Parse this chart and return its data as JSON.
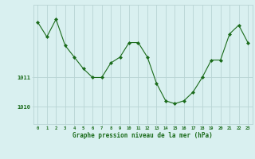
{
  "x": [
    0,
    1,
    2,
    3,
    4,
    5,
    6,
    7,
    8,
    9,
    10,
    11,
    12,
    13,
    14,
    15,
    16,
    17,
    18,
    19,
    20,
    21,
    22,
    23
  ],
  "y": [
    1012.9,
    1012.4,
    1013.0,
    1012.1,
    1011.7,
    1011.3,
    1011.0,
    1011.0,
    1011.5,
    1011.7,
    1012.2,
    1012.2,
    1011.7,
    1010.8,
    1010.2,
    1010.1,
    1010.2,
    1010.5,
    1011.0,
    1011.6,
    1011.6,
    1012.5,
    1012.8,
    1012.2
  ],
  "line_color": "#1a6b1a",
  "marker_color": "#1a6b1a",
  "bg_color": "#d9f0f0",
  "grid_color": "#b8d4d4",
  "axis_label_color": "#1a6b1a",
  "tick_label_color": "#1a6b1a",
  "xlabel": "Graphe pression niveau de la mer (hPa)",
  "yticks": [
    1010,
    1011
  ],
  "ylim": [
    1009.4,
    1013.5
  ],
  "xlim": [
    -0.5,
    23.5
  ]
}
